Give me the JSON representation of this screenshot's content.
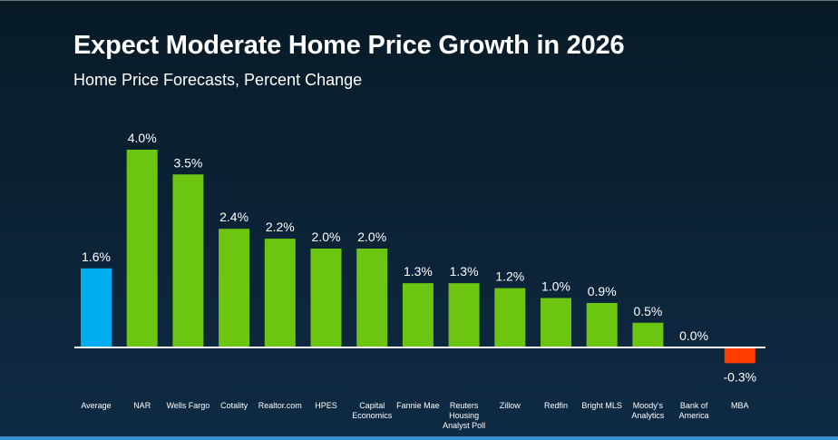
{
  "header": {
    "title": "Expect Moderate Home Price Growth in 2026",
    "subtitle": "Home Price Forecasts, Percent Change"
  },
  "colors": {
    "average": "#00aeef",
    "positive": "#6cc611",
    "negative": "#ff3d00",
    "baseline": "#ffffff",
    "text": "#ffffff"
  },
  "chart_data": {
    "type": "bar",
    "title": "Expect Moderate Home Price Growth in 2026",
    "subtitle": "Home Price Forecasts, Percent Change",
    "xlabel": "",
    "ylabel": "",
    "unit": "%",
    "grid": false,
    "legend": "none",
    "ylim": [
      -0.3,
      4.0
    ],
    "categories": [
      [
        "Average"
      ],
      [
        "NAR"
      ],
      [
        "Wells Fargo"
      ],
      [
        "Cotality"
      ],
      [
        "Realtor.com"
      ],
      [
        "HPES"
      ],
      [
        "Capital",
        "Economics"
      ],
      [
        "Fannie Mae"
      ],
      [
        "Reuters",
        "Housing",
        "Analyst Poll"
      ],
      [
        "Zillow"
      ],
      [
        "Redfin"
      ],
      [
        "Bright MLS"
      ],
      [
        "Moody's",
        "Analytics"
      ],
      [
        "Bank of",
        "America"
      ],
      [
        "MBA"
      ]
    ],
    "values": [
      1.6,
      4.0,
      3.5,
      2.4,
      2.2,
      2.0,
      2.0,
      1.3,
      1.3,
      1.2,
      1.0,
      0.9,
      0.5,
      0.0,
      -0.3
    ],
    "labels": [
      "1.6%",
      "4.0%",
      "3.5%",
      "2.4%",
      "2.2%",
      "2.0%",
      "2.0%",
      "1.3%",
      "1.3%",
      "1.2%",
      "1.0%",
      "0.9%",
      "0.5%",
      "0.0%",
      "-0.3%"
    ],
    "highlight": [
      "average"
    ]
  }
}
